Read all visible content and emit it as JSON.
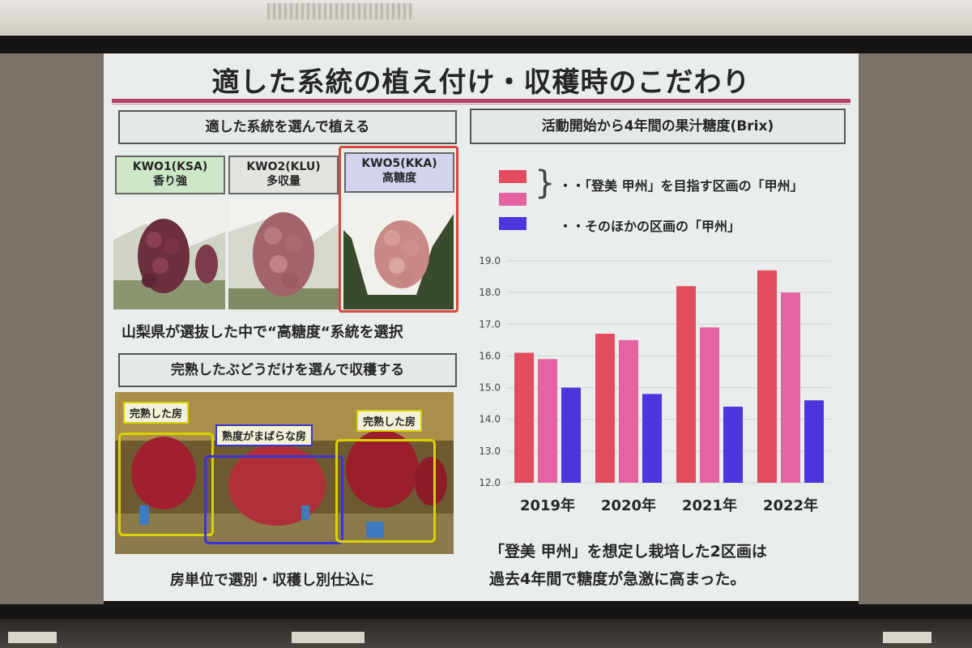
{
  "slide": {
    "title": "適した系統の植え付け・収穫時のこだわり",
    "left_top": {
      "header": "適した系統を選んで植える",
      "varieties": [
        {
          "code": "KWO1(KSA)",
          "desc": "香り強",
          "color": "#cde7c8"
        },
        {
          "code": "KWO2(KLU)",
          "desc": "多収量",
          "color": "#e3e3e0"
        },
        {
          "code": "KWO5(KKA)",
          "desc": "高糖度",
          "color": "#d2d4ee",
          "highlight_color": "#d9473d"
        }
      ],
      "caption": "山梨県が選抜した中で“高糖度“系統を選択"
    },
    "left_bottom": {
      "header": "完熟したぶどうだけを選んで収穫する",
      "overlays": [
        {
          "text": "完熟した房",
          "color": "#d9d200"
        },
        {
          "text": "熟度がまばらな房",
          "color": "#3a33d6"
        },
        {
          "text": "完熟した房",
          "color": "#d9d200"
        }
      ],
      "caption": "房単位で選別・収穫し別仕込に"
    },
    "right": {
      "header": "活動開始から4年間の果汁糖度(Brix)",
      "legend_group": "・・「登美 甲州」を目指す区画の「甲州」",
      "legend_other": "・・そのほかの区画の「甲州」",
      "conclusion_line1": "「登美 甲州」を想定し栽培した2区画は",
      "conclusion_line2": "過去4年間で糖度が急激に高まった。"
    }
  },
  "chart_data": {
    "type": "bar",
    "categories": [
      "2019年",
      "2020年",
      "2021年",
      "2022年"
    ],
    "series": [
      {
        "values": [
          16.1,
          16.7,
          18.2,
          18.7
        ],
        "color": "#e34b5f"
      },
      {
        "values": [
          15.9,
          16.5,
          16.9,
          18.0
        ],
        "color": "#e563a3"
      },
      {
        "values": [
          15.0,
          14.8,
          14.4,
          14.6
        ],
        "color": "#4b35dc"
      }
    ],
    "yticks": [
      "12.0",
      "13.0",
      "14.0",
      "15.0",
      "16.0",
      "17.0",
      "18.0",
      "19.0"
    ],
    "ylim": [
      12.0,
      19.0
    ],
    "grid": true
  }
}
